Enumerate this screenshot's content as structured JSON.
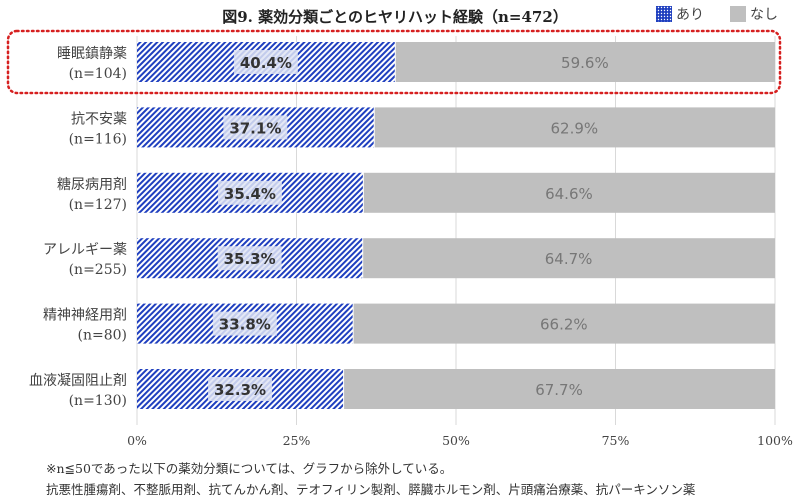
{
  "chart_data": {
    "type": "bar",
    "stacked": true,
    "orientation": "horizontal",
    "title": "図9. 薬効分類ごとのヒヤリハット経験（n=472）",
    "categories": [
      {
        "name": "睡眠鎮静薬",
        "n": "(n=104)",
        "highlighted": true
      },
      {
        "name": "抗不安薬",
        "n": "(n=116)"
      },
      {
        "name": "糖尿病用剤",
        "n": "(n=127)"
      },
      {
        "name": "アレルギー薬",
        "n": "(n=255)"
      },
      {
        "name": "精神神経用剤",
        "n": "(n=80)"
      },
      {
        "name": "血液凝固阻止剤",
        "n": "(n=130)"
      }
    ],
    "series": [
      {
        "name": "あり",
        "color": "#1f3fbf",
        "values": [
          40.4,
          37.1,
          35.4,
          35.3,
          33.8,
          32.3
        ],
        "labels": [
          "40.4%",
          "37.1%",
          "35.4%",
          "35.3%",
          "33.8%",
          "32.3%"
        ]
      },
      {
        "name": "なし",
        "color": "#bfbfbf",
        "values": [
          59.6,
          62.9,
          64.6,
          64.7,
          66.2,
          67.7
        ],
        "labels": [
          "59.6%",
          "62.9%",
          "64.6%",
          "64.7%",
          "66.2%",
          "67.7%"
        ]
      }
    ],
    "xlim": [
      0,
      100
    ],
    "xticks": [
      "0%",
      "25%",
      "50%",
      "75%",
      "100%"
    ],
    "grid": true,
    "legend": "top-right",
    "highlight_color": "#d62020"
  },
  "notes": [
    "※n≦50であった以下の薬効分類については、グラフから除外している。",
    "抗悪性腫瘍剤、不整脈用剤、抗てんかん剤、テオフィリン製剤、膵臓ホルモン剤、片頭痛治療薬、抗パーキンソン薬"
  ]
}
